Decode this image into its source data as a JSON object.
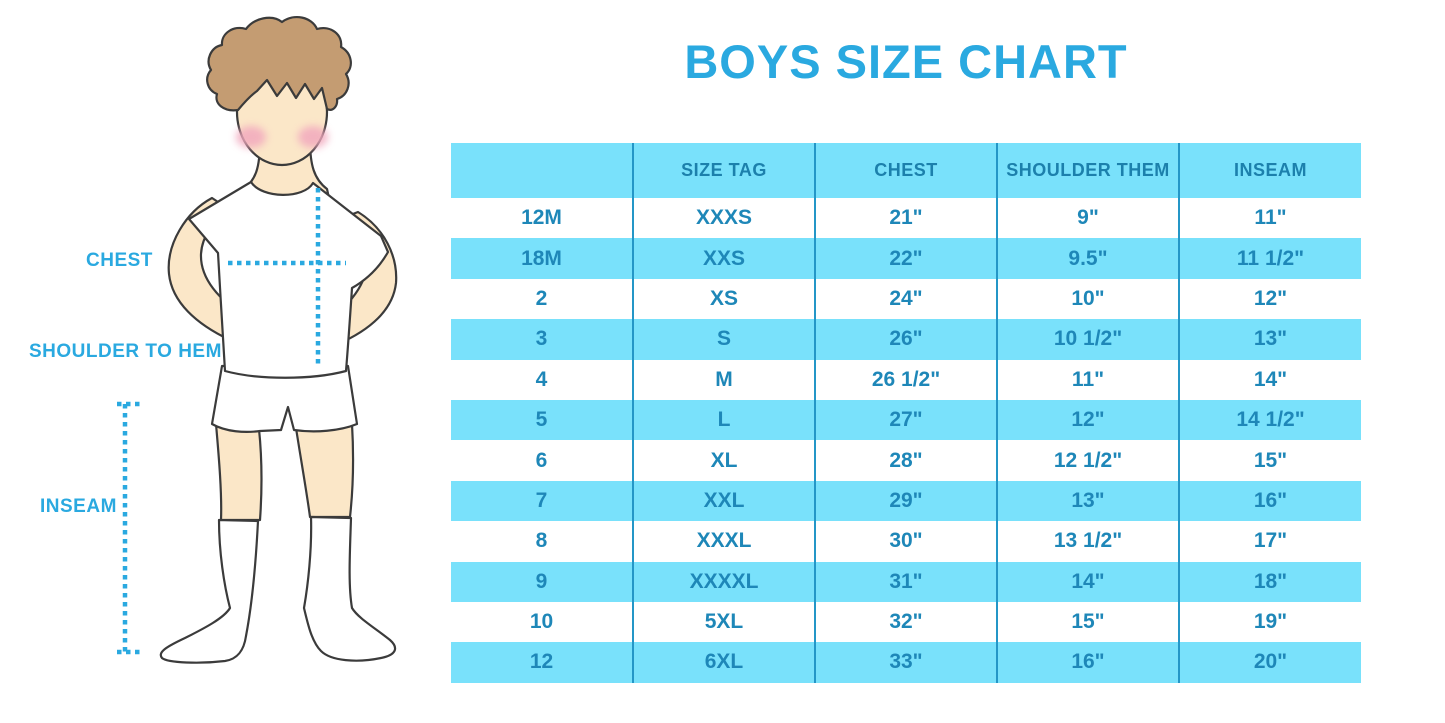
{
  "title": "BOYS SIZE CHART",
  "figure": {
    "description": "cartoon boy in white tee, shorts and knee socks with measurement guides",
    "labels": {
      "chest": "CHEST",
      "shoulder_to_hem": "SHOULDER TO HEM",
      "inseam": "INSEAM"
    }
  },
  "table": {
    "headers": [
      "",
      "SIZE TAG",
      "CHEST",
      "SHOULDER THEM",
      "INSEAM"
    ],
    "rows": [
      [
        "12M",
        "XXXS",
        "21\"",
        "9\"",
        "11\""
      ],
      [
        "18M",
        "XXS",
        "22\"",
        "9.5\"",
        "11 1/2\""
      ],
      [
        "2",
        "XS",
        "24\"",
        "10\"",
        "12\""
      ],
      [
        "3",
        "S",
        "26\"",
        "10 1/2\"",
        "13\""
      ],
      [
        "4",
        "M",
        "26 1/2\"",
        "11\"",
        "14\""
      ],
      [
        "5",
        "L",
        "27\"",
        "12\"",
        "14 1/2\""
      ],
      [
        "6",
        "XL",
        "28\"",
        "12 1/2\"",
        "15\""
      ],
      [
        "7",
        "XXL",
        "29\"",
        "13\"",
        "16\""
      ],
      [
        "8",
        "XXXL",
        "30\"",
        "13 1/2\"",
        "17\""
      ],
      [
        "9",
        "XXXXL",
        "31\"",
        "14\"",
        "18\""
      ],
      [
        "10",
        "5XL",
        "32\"",
        "15\"",
        "19\""
      ],
      [
        "12",
        "6XL",
        "33\"",
        "16\"",
        "20\""
      ]
    ]
  },
  "colors": {
    "accent_blue": "#2AA9E0",
    "row_blue": "#79E1FB",
    "table_text": "#1E87B8",
    "divider_blue": "#2496C7",
    "skin": "#FBE7C8",
    "hair": "#C49C72",
    "blush": "#F2A9BE",
    "outline": "#3B3B3B"
  }
}
